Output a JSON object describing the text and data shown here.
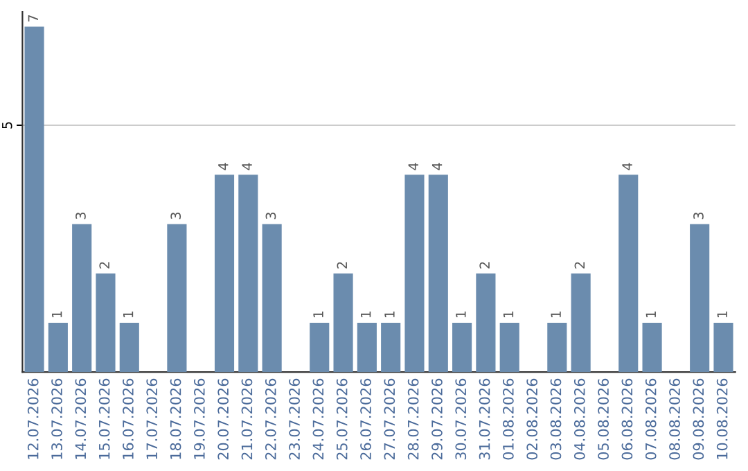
{
  "chart_data": {
    "type": "bar",
    "categories": [
      "12.07.2026",
      "13.07.2026",
      "14.07.2026",
      "15.07.2026",
      "16.07.2026",
      "17.07.2026",
      "18.07.2026",
      "19.07.2026",
      "20.07.2026",
      "21.07.2026",
      "22.07.2026",
      "23.07.2026",
      "24.07.2026",
      "25.07.2026",
      "26.07.2026",
      "27.07.2026",
      "28.07.2026",
      "29.07.2026",
      "30.07.2026",
      "31.07.2026",
      "01.08.2026",
      "02.08.2026",
      "03.08.2026",
      "04.08.2026",
      "05.08.2026",
      "06.08.2026",
      "07.08.2026",
      "08.08.2026",
      "09.08.2026",
      "10.08.2026"
    ],
    "values": [
      7,
      1,
      3,
      2,
      1,
      null,
      3,
      null,
      4,
      4,
      3,
      null,
      1,
      2,
      1,
      1,
      4,
      4,
      1,
      2,
      1,
      null,
      1,
      2,
      null,
      4,
      1,
      null,
      3,
      1
    ],
    "color": "#6b8cae",
    "ylim": [
      0,
      7.3
    ],
    "yticks": [
      5
    ],
    "grid": "y",
    "data_labels": true
  }
}
